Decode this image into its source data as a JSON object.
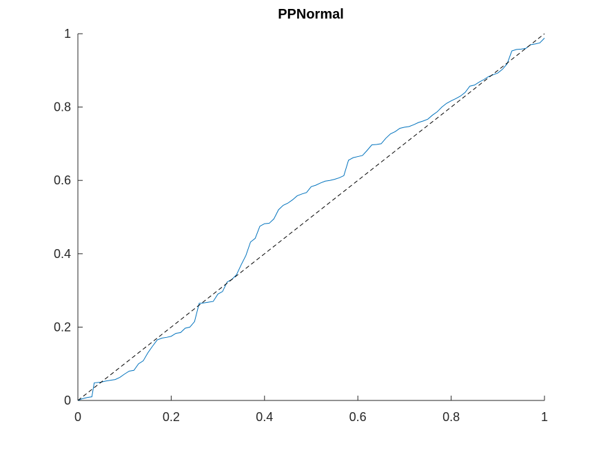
{
  "chart_data": {
    "type": "line",
    "title": "PPNormal",
    "xlabel": "",
    "ylabel": "",
    "xlim": [
      0,
      1
    ],
    "ylim": [
      0,
      1
    ],
    "grid": false,
    "x_ticks": [
      "0",
      "0.2",
      "0.4",
      "0.6",
      "0.8",
      "1"
    ],
    "y_ticks": [
      "0",
      "0.2",
      "0.4",
      "0.6",
      "0.8",
      "1"
    ],
    "series": [
      {
        "color": "#0072BD",
        "style": "solid",
        "x": [
          0.0,
          0.01,
          0.02,
          0.03,
          0.035,
          0.05,
          0.06,
          0.07,
          0.08,
          0.09,
          0.1,
          0.11,
          0.12,
          0.13,
          0.14,
          0.15,
          0.16,
          0.17,
          0.18,
          0.19,
          0.2,
          0.21,
          0.22,
          0.23,
          0.24,
          0.25,
          0.26,
          0.265,
          0.28,
          0.29,
          0.3,
          0.31,
          0.32,
          0.33,
          0.34,
          0.35,
          0.36,
          0.37,
          0.38,
          0.39,
          0.4,
          0.41,
          0.42,
          0.43,
          0.44,
          0.45,
          0.46,
          0.47,
          0.48,
          0.49,
          0.5,
          0.51,
          0.52,
          0.53,
          0.54,
          0.55,
          0.56,
          0.57,
          0.58,
          0.59,
          0.6,
          0.61,
          0.62,
          0.63,
          0.64,
          0.65,
          0.66,
          0.67,
          0.68,
          0.69,
          0.7,
          0.71,
          0.72,
          0.73,
          0.74,
          0.75,
          0.76,
          0.77,
          0.78,
          0.79,
          0.8,
          0.81,
          0.82,
          0.83,
          0.84,
          0.85,
          0.86,
          0.87,
          0.88,
          0.89,
          0.9,
          0.91,
          0.92,
          0.93,
          0.94,
          0.95,
          0.96,
          0.97,
          0.98,
          0.99,
          1.0
        ],
        "y": [
          0.0,
          0.005,
          0.008,
          0.01,
          0.048,
          0.05,
          0.053,
          0.055,
          0.057,
          0.063,
          0.072,
          0.08,
          0.082,
          0.1,
          0.108,
          0.13,
          0.148,
          0.165,
          0.17,
          0.172,
          0.175,
          0.183,
          0.185,
          0.197,
          0.2,
          0.215,
          0.265,
          0.265,
          0.268,
          0.27,
          0.29,
          0.297,
          0.323,
          0.33,
          0.343,
          0.37,
          0.395,
          0.432,
          0.442,
          0.475,
          0.482,
          0.483,
          0.495,
          0.52,
          0.532,
          0.538,
          0.547,
          0.558,
          0.563,
          0.567,
          0.583,
          0.587,
          0.593,
          0.598,
          0.6,
          0.603,
          0.607,
          0.613,
          0.655,
          0.662,
          0.665,
          0.668,
          0.682,
          0.697,
          0.698,
          0.7,
          0.715,
          0.727,
          0.733,
          0.742,
          0.745,
          0.747,
          0.752,
          0.758,
          0.762,
          0.767,
          0.778,
          0.787,
          0.8,
          0.81,
          0.817,
          0.823,
          0.83,
          0.84,
          0.857,
          0.86,
          0.868,
          0.875,
          0.883,
          0.888,
          0.893,
          0.903,
          0.918,
          0.953,
          0.957,
          0.958,
          0.96,
          0.97,
          0.972,
          0.975,
          0.988
        ]
      },
      {
        "color": "#000000",
        "style": "dashed",
        "x": [
          0.0,
          1.0
        ],
        "y": [
          0.0,
          1.0
        ]
      }
    ]
  }
}
